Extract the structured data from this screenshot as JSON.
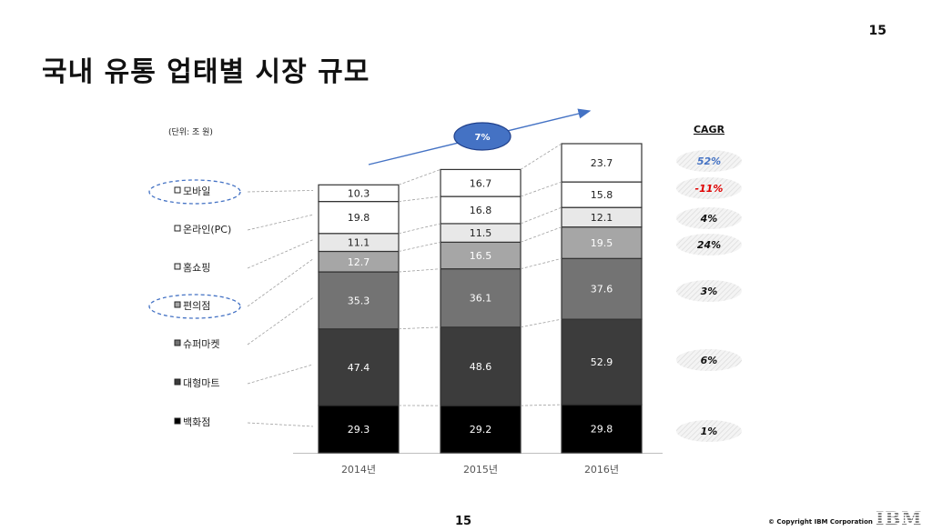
{
  "page": {
    "number_top": "15",
    "title": "국내 유통 업태별 시장 규모",
    "number_bottom": "15",
    "copyright": "© Copyright IBM Corporation",
    "logo": "IBM"
  },
  "chart_data": {
    "type": "bar",
    "stacked": true,
    "unit_label": "(단위: 조 원)",
    "categories": [
      "2014년",
      "2015년",
      "2016년"
    ],
    "series": [
      {
        "name": "백화점",
        "color": "#000000",
        "text_color": "#ffffff",
        "values": [
          29.3,
          29.2,
          29.8
        ],
        "cagr": "1%"
      },
      {
        "name": "대형마트",
        "color": "#3c3c3c",
        "text_color": "#ffffff",
        "values": [
          47.4,
          48.6,
          52.9
        ],
        "cagr": "6%"
      },
      {
        "name": "슈퍼마켓",
        "color": "#737373",
        "text_color": "#ffffff",
        "values": [
          35.3,
          36.1,
          37.6
        ],
        "cagr": "3%"
      },
      {
        "name": "편의점",
        "color": "#a6a6a6",
        "text_color": "#ffffff",
        "values": [
          12.7,
          16.5,
          19.5
        ],
        "cagr": "24%"
      },
      {
        "name": "홈쇼핑",
        "color": "#e8e8e8",
        "text_color": "#222222",
        "values": [
          11.1,
          11.5,
          12.1
        ],
        "cagr": "4%"
      },
      {
        "name": "온라인(PC)",
        "color": "#ffffff",
        "text_color": "#222222",
        "values": [
          19.8,
          16.8,
          15.8
        ],
        "cagr": "-11%"
      },
      {
        "name": "모바일",
        "color": "#ffffff",
        "text_color": "#222222",
        "values": [
          10.3,
          16.7,
          23.7
        ],
        "cagr": "52%"
      }
    ],
    "highlighted_series": [
      "모바일",
      "편의점"
    ],
    "cagr_header": "CAGR",
    "cagr_colors": {
      "모바일": "#4472c4",
      "온라인(PC)": "#e00000"
    },
    "growth_badge": "7%",
    "growth_badge_color": "#4472c4"
  }
}
